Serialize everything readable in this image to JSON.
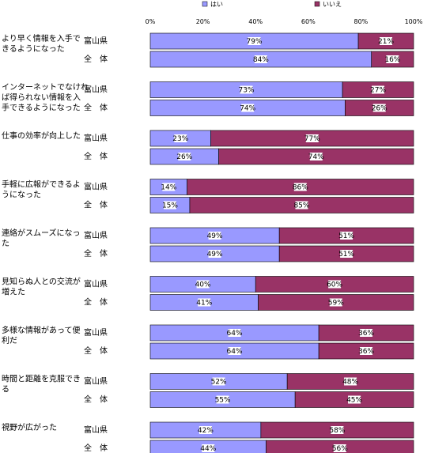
{
  "chart_data": {
    "type": "bar",
    "stacked": true,
    "orientation": "horizontal",
    "xlim": [
      0,
      100
    ],
    "ticks": [
      "0%",
      "20%",
      "40%",
      "60%",
      "80%",
      "100%"
    ],
    "legend": {
      "position": "top",
      "items": [
        {
          "name": "はい",
          "color": "#9999ff"
        },
        {
          "name": "いいえ",
          "color": "#993366"
        }
      ]
    },
    "groups": [
      {
        "label_lines": [
          "より早く情報を入手で",
          "きるようになった"
        ],
        "rows": [
          {
            "region": "富山県",
            "values": [
              79,
              21
            ],
            "labels": [
              "79%",
              "21%"
            ]
          },
          {
            "region": "全　体",
            "values": [
              84,
              16
            ],
            "labels": [
              "84%",
              "16%"
            ]
          }
        ]
      },
      {
        "label_lines": [
          "インターネットでなけれ",
          "ば得られない情報を入",
          "手できるようになった"
        ],
        "rows": [
          {
            "region": "富山県",
            "values": [
              73,
              27
            ],
            "labels": [
              "73%",
              "27%"
            ]
          },
          {
            "region": "全　体",
            "values": [
              74,
              26
            ],
            "labels": [
              "74%",
              "26%"
            ]
          }
        ]
      },
      {
        "label_lines": [
          "仕事の効率が向上した"
        ],
        "rows": [
          {
            "region": "富山県",
            "values": [
              23,
              77
            ],
            "labels": [
              "23%",
              "77%"
            ]
          },
          {
            "region": "全　体",
            "values": [
              26,
              74
            ],
            "labels": [
              "26%",
              "74%"
            ]
          }
        ]
      },
      {
        "label_lines": [
          "手軽に広報ができるよ",
          "うになった"
        ],
        "rows": [
          {
            "region": "富山県",
            "values": [
              14,
              86
            ],
            "labels": [
              "14%",
              "86%"
            ]
          },
          {
            "region": "全　体",
            "values": [
              15,
              85
            ],
            "labels": [
              "15%",
              "85%"
            ]
          }
        ]
      },
      {
        "label_lines": [
          "連絡がスムーズになっ",
          "た"
        ],
        "rows": [
          {
            "region": "富山県",
            "values": [
              49,
              51
            ],
            "labels": [
              "49%",
              "51%"
            ]
          },
          {
            "region": "全　体",
            "values": [
              49,
              51
            ],
            "labels": [
              "49%",
              "51%"
            ]
          }
        ]
      },
      {
        "label_lines": [
          "見知らぬ人との交流が",
          "増えた"
        ],
        "rows": [
          {
            "region": "富山県",
            "values": [
              40,
              60
            ],
            "labels": [
              "40%",
              "60%"
            ]
          },
          {
            "region": "全　体",
            "values": [
              41,
              59
            ],
            "labels": [
              "41%",
              "59%"
            ]
          }
        ]
      },
      {
        "label_lines": [
          "多様な情報があって便",
          "利だ"
        ],
        "rows": [
          {
            "region": "富山県",
            "values": [
              64,
              36
            ],
            "labels": [
              "64%",
              "36%"
            ]
          },
          {
            "region": "全　体",
            "values": [
              64,
              36
            ],
            "labels": [
              "64%",
              "36%"
            ]
          }
        ]
      },
      {
        "label_lines": [
          "時間と距離を克服でき",
          "る"
        ],
        "rows": [
          {
            "region": "富山県",
            "values": [
              52,
              48
            ],
            "labels": [
              "52%",
              "48%"
            ]
          },
          {
            "region": "全　体",
            "values": [
              55,
              45
            ],
            "labels": [
              "55%",
              "45%"
            ]
          }
        ]
      },
      {
        "label_lines": [
          "視野が広がった"
        ],
        "rows": [
          {
            "region": "富山県",
            "values": [
              42,
              58
            ],
            "labels": [
              "42%",
              "58%"
            ]
          },
          {
            "region": "全　体",
            "values": [
              44,
              56
            ],
            "labels": [
              "44%",
              "56%"
            ]
          }
        ]
      }
    ]
  }
}
